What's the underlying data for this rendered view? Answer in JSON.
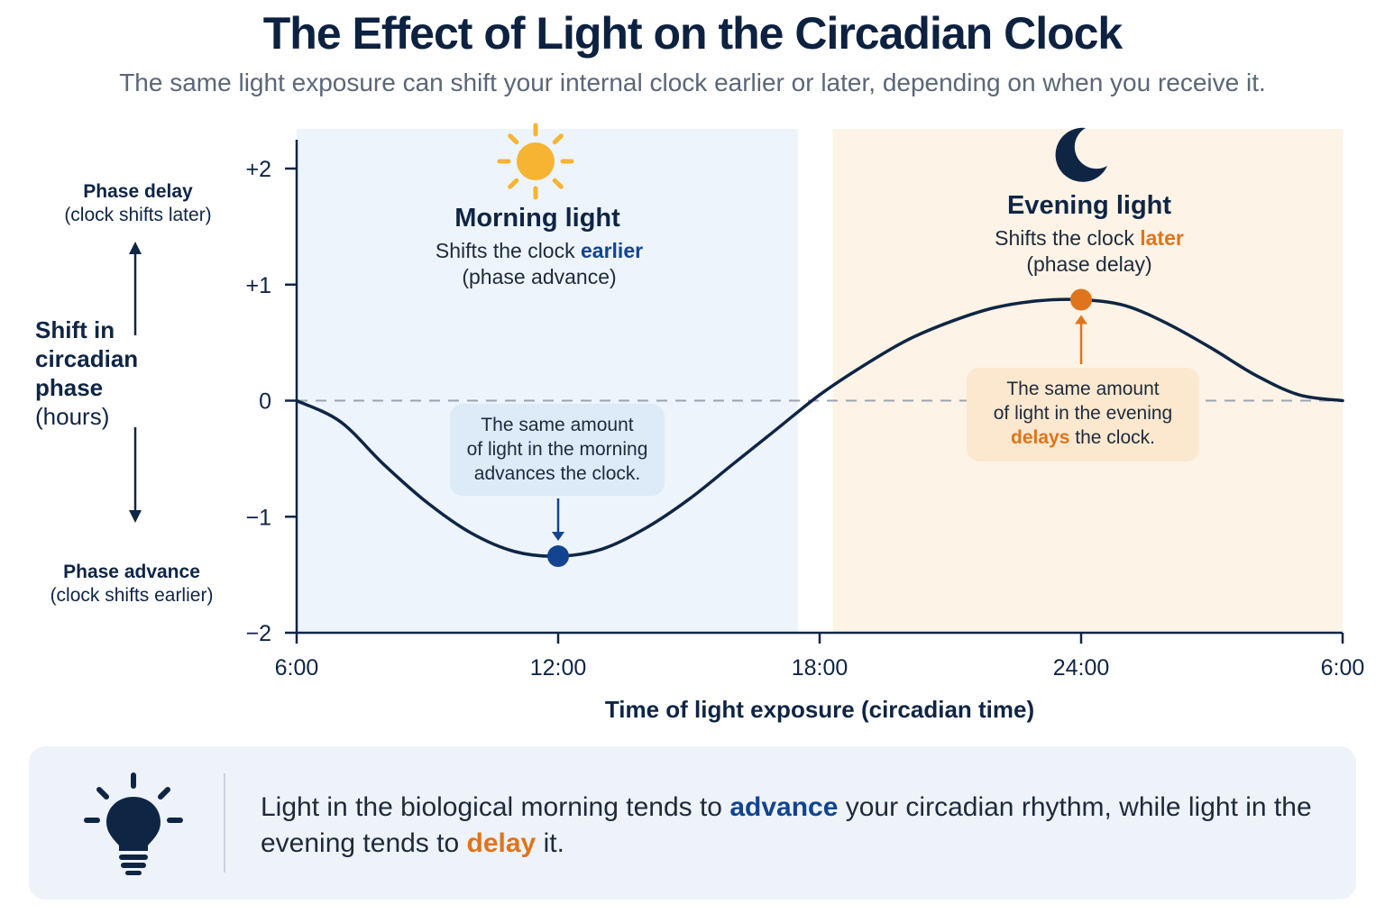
{
  "title": "The Effect of Light on the Circadian Clock",
  "subtitle": "The same light exposure can shift your internal clock earlier or later, depending on when you receive it.",
  "y_axis": {
    "label_lines": [
      "Shift in",
      "circadian",
      "phase",
      "(hours)"
    ],
    "top_note": {
      "main": "Phase delay",
      "sub": "(clock shifts later)"
    },
    "bottom_note": {
      "main": "Phase advance",
      "sub": "(clock shifts earlier)"
    }
  },
  "x_axis_label": "Time of light exposure (circadian time)",
  "regions": {
    "morning": {
      "title": "Morning light",
      "sub_prefix": "Shifts the clock ",
      "sub_highlight": "earlier",
      "sub_line2": "(phase advance)",
      "icon": "sun-icon",
      "shade_color": "#edf4fc",
      "callout_lines": [
        "The same amount",
        "of light in the morning",
        "advances the clock."
      ]
    },
    "evening": {
      "title": "Evening light",
      "sub_prefix": "Shifts the clock ",
      "sub_highlight": "later",
      "sub_line2": "(phase delay)",
      "icon": "moon-icon",
      "shade_color": "#fdf3e6",
      "callout_line1": "The same amount",
      "callout_line2": "of light in the evening",
      "callout_highlight": "delays",
      "callout_suffix": " the clock."
    }
  },
  "colors": {
    "curve": "#0f2544",
    "morning_point": "#12448f",
    "evening_point": "#e0741c",
    "sun": "#f6b432",
    "moon": "#0f2544"
  },
  "footer": {
    "icon": "lightbulb-icon",
    "text_part1": "Light in the biological morning tends to ",
    "highlight1": "advance",
    "text_part2": " your circadian rhythm, while light in the evening tends to ",
    "highlight2": "delay",
    "text_part3": " it."
  },
  "chart_data": {
    "type": "line",
    "x_range": [
      0,
      24
    ],
    "ylim": [
      -2,
      2
    ],
    "x_ticks": [
      {
        "x": 0,
        "label": "6:00"
      },
      {
        "x": 6,
        "label": "12:00"
      },
      {
        "x": 12,
        "label": "18:00"
      },
      {
        "x": 18,
        "label": "24:00"
      },
      {
        "x": 24,
        "label": "6:00"
      }
    ],
    "y_ticks": [
      {
        "y": 2,
        "label": "+2"
      },
      {
        "y": 1,
        "label": "+1"
      },
      {
        "y": 0,
        "label": "0"
      },
      {
        "y": -1,
        "label": "−1"
      },
      {
        "y": -2,
        "label": "−2"
      }
    ],
    "series": [
      {
        "x": [
          0,
          1,
          2,
          3,
          4,
          5,
          6,
          7,
          8,
          9,
          10,
          11,
          12,
          13,
          14,
          15,
          16,
          17,
          18,
          19,
          20,
          21,
          22,
          23,
          24
        ],
        "values": [
          0,
          -0.18,
          -0.55,
          -0.88,
          -1.14,
          -1.3,
          -1.34,
          -1.28,
          -1.1,
          -0.85,
          -0.55,
          -0.25,
          0.05,
          0.3,
          0.52,
          0.68,
          0.8,
          0.86,
          0.87,
          0.82,
          0.66,
          0.45,
          0.22,
          0.05,
          0
        ]
      }
    ],
    "highlight_points": [
      {
        "x": 6,
        "y": -1.34,
        "region": "morning"
      },
      {
        "x": 18,
        "y": 0.87,
        "region": "evening"
      }
    ],
    "morning_region": [
      0,
      11.5
    ],
    "evening_region": [
      12.3,
      24
    ],
    "reference_line_y": 0,
    "grid": false
  }
}
